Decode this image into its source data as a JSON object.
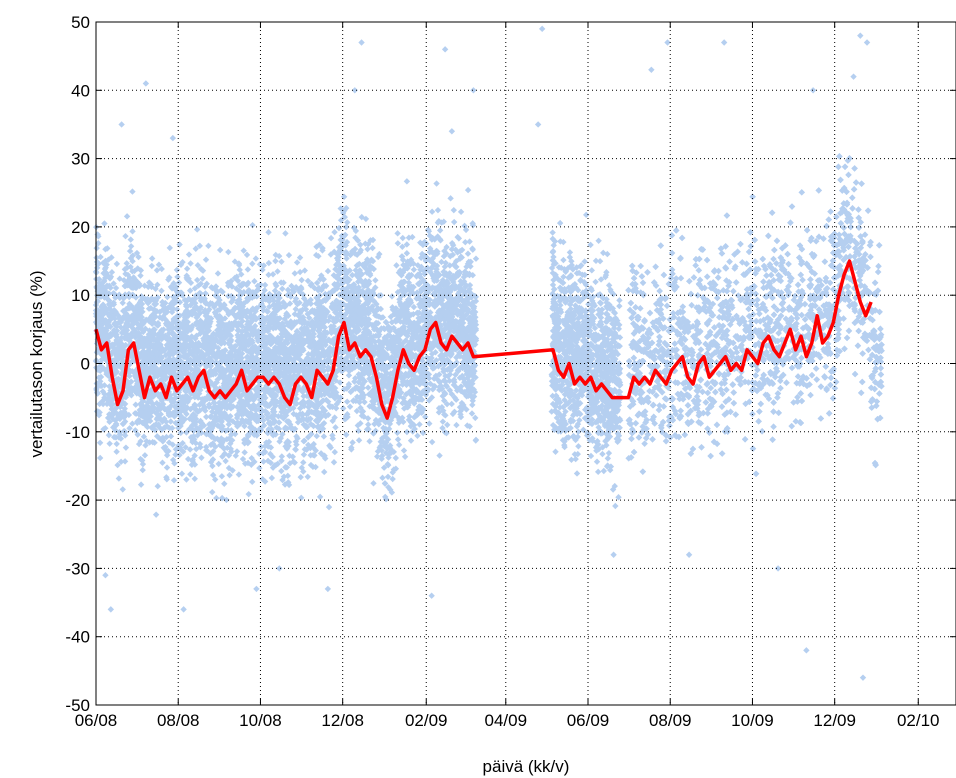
{
  "chart_data": {
    "type": "scatter",
    "title": "",
    "xlabel": "päivä (kk/v)",
    "ylabel": "vertailutason korjaus (%)",
    "xlim": [
      "2008-06-01",
      "2010-03-01"
    ],
    "ylim": [
      -50,
      50
    ],
    "grid": true,
    "x_tick_labels": [
      "06/08",
      "08/08",
      "10/08",
      "12/08",
      "02/09",
      "04/09",
      "06/09",
      "08/09",
      "10/09",
      "12/09",
      "02/10"
    ],
    "y_tick_labels": [
      "-50",
      "-40",
      "-30",
      "-20",
      "-10",
      "0",
      "10",
      "20",
      "30",
      "40",
      "50"
    ],
    "colors": {
      "scatter": "#b5cff0",
      "line": "#ff0000",
      "grid": "#000000"
    },
    "series": [
      {
        "type": "scatter",
        "marker": "diamond",
        "data_segments": [
          {
            "x_start": "2008-06-01",
            "x_end": "2009-03-10",
            "typical_min": -20,
            "typical_max": 25
          },
          {
            "x_start": "2009-05-05",
            "x_end": "2009-06-25",
            "typical_min": -20,
            "typical_max": 20
          },
          {
            "x_start": "2009-07-01",
            "x_end": "2010-01-05",
            "typical_min": -20,
            "typical_max": 25
          }
        ],
        "outliers": [
          {
            "x": "2008-06-20",
            "y": 35
          },
          {
            "x": "2008-07-08",
            "y": 41
          },
          {
            "x": "2008-07-28",
            "y": 33
          },
          {
            "x": "2008-06-12",
            "y": -36
          },
          {
            "x": "2008-08-05",
            "y": -36
          },
          {
            "x": "2008-12-15",
            "y": 47
          },
          {
            "x": "2008-12-10",
            "y": 40
          },
          {
            "x": "2009-02-15",
            "y": 46
          },
          {
            "x": "2009-02-20",
            "y": 34
          },
          {
            "x": "2009-03-08",
            "y": 40
          },
          {
            "x": "2009-04-28",
            "y": 49
          },
          {
            "x": "2009-04-25",
            "y": 35
          },
          {
            "x": "2009-07-18",
            "y": 43
          },
          {
            "x": "2009-07-30",
            "y": 47
          },
          {
            "x": "2009-09-10",
            "y": 47
          },
          {
            "x": "2009-11-15",
            "y": 40
          },
          {
            "x": "2009-12-20",
            "y": 48
          },
          {
            "x": "2009-12-25",
            "y": 47
          },
          {
            "x": "2009-12-15",
            "y": 42
          },
          {
            "x": "2009-10-20",
            "y": -30
          },
          {
            "x": "2009-11-10",
            "y": -42
          },
          {
            "x": "2009-12-22",
            "y": -46
          },
          {
            "x": "2009-02-05",
            "y": -34
          },
          {
            "x": "2008-10-15",
            "y": -30
          },
          {
            "x": "2008-11-20",
            "y": -33
          },
          {
            "x": "2008-09-28",
            "y": -33
          },
          {
            "x": "2009-06-20",
            "y": -28
          },
          {
            "x": "2009-08-15",
            "y": -28
          },
          {
            "x": "2008-06-08",
            "y": -31
          }
        ]
      },
      {
        "type": "line",
        "points": [
          {
            "x": "2008-06-01",
            "y": 5
          },
          {
            "x": "2008-06-05",
            "y": 2
          },
          {
            "x": "2008-06-09",
            "y": 3
          },
          {
            "x": "2008-06-13",
            "y": -2
          },
          {
            "x": "2008-06-17",
            "y": -6
          },
          {
            "x": "2008-06-21",
            "y": -4
          },
          {
            "x": "2008-06-25",
            "y": 2
          },
          {
            "x": "2008-06-29",
            "y": 3
          },
          {
            "x": "2008-07-03",
            "y": -1
          },
          {
            "x": "2008-07-07",
            "y": -5
          },
          {
            "x": "2008-07-11",
            "y": -2
          },
          {
            "x": "2008-07-15",
            "y": -4
          },
          {
            "x": "2008-07-19",
            "y": -3
          },
          {
            "x": "2008-07-23",
            "y": -5
          },
          {
            "x": "2008-07-27",
            "y": -2
          },
          {
            "x": "2008-07-31",
            "y": -4
          },
          {
            "x": "2008-08-04",
            "y": -3
          },
          {
            "x": "2008-08-08",
            "y": -2
          },
          {
            "x": "2008-08-12",
            "y": -4
          },
          {
            "x": "2008-08-16",
            "y": -2
          },
          {
            "x": "2008-08-20",
            "y": -1
          },
          {
            "x": "2008-08-24",
            "y": -4
          },
          {
            "x": "2008-08-28",
            "y": -5
          },
          {
            "x": "2008-09-01",
            "y": -4
          },
          {
            "x": "2008-09-05",
            "y": -5
          },
          {
            "x": "2008-09-09",
            "y": -4
          },
          {
            "x": "2008-09-13",
            "y": -3
          },
          {
            "x": "2008-09-17",
            "y": -1
          },
          {
            "x": "2008-09-21",
            "y": -4
          },
          {
            "x": "2008-09-25",
            "y": -3
          },
          {
            "x": "2008-09-29",
            "y": -2
          },
          {
            "x": "2008-10-03",
            "y": -2
          },
          {
            "x": "2008-10-07",
            "y": -3
          },
          {
            "x": "2008-10-11",
            "y": -2
          },
          {
            "x": "2008-10-15",
            "y": -3
          },
          {
            "x": "2008-10-19",
            "y": -5
          },
          {
            "x": "2008-10-23",
            "y": -6
          },
          {
            "x": "2008-10-27",
            "y": -3
          },
          {
            "x": "2008-10-31",
            "y": -2
          },
          {
            "x": "2008-11-04",
            "y": -3
          },
          {
            "x": "2008-11-08",
            "y": -5
          },
          {
            "x": "2008-11-12",
            "y": -1
          },
          {
            "x": "2008-11-16",
            "y": -2
          },
          {
            "x": "2008-11-20",
            "y": -3
          },
          {
            "x": "2008-11-24",
            "y": -1
          },
          {
            "x": "2008-11-28",
            "y": 4
          },
          {
            "x": "2008-12-02",
            "y": 6
          },
          {
            "x": "2008-12-06",
            "y": 2
          },
          {
            "x": "2008-12-10",
            "y": 3
          },
          {
            "x": "2008-12-14",
            "y": 1
          },
          {
            "x": "2008-12-18",
            "y": 2
          },
          {
            "x": "2008-12-22",
            "y": 1
          },
          {
            "x": "2008-12-26",
            "y": -2
          },
          {
            "x": "2008-12-30",
            "y": -6
          },
          {
            "x": "2009-01-03",
            "y": -8
          },
          {
            "x": "2009-01-07",
            "y": -5
          },
          {
            "x": "2009-01-11",
            "y": -1
          },
          {
            "x": "2009-01-15",
            "y": 2
          },
          {
            "x": "2009-01-19",
            "y": 0
          },
          {
            "x": "2009-01-23",
            "y": -1
          },
          {
            "x": "2009-01-27",
            "y": 1
          },
          {
            "x": "2009-01-31",
            "y": 2
          },
          {
            "x": "2009-02-04",
            "y": 5
          },
          {
            "x": "2009-02-08",
            "y": 6
          },
          {
            "x": "2009-02-12",
            "y": 3
          },
          {
            "x": "2009-02-16",
            "y": 2
          },
          {
            "x": "2009-02-20",
            "y": 4
          },
          {
            "x": "2009-02-24",
            "y": 3
          },
          {
            "x": "2009-02-28",
            "y": 2
          },
          {
            "x": "2009-03-04",
            "y": 3
          },
          {
            "x": "2009-03-08",
            "y": 1
          },
          {
            "x": "2009-05-06",
            "y": 2
          },
          {
            "x": "2009-05-10",
            "y": -1
          },
          {
            "x": "2009-05-14",
            "y": -2
          },
          {
            "x": "2009-05-18",
            "y": 0
          },
          {
            "x": "2009-05-22",
            "y": -3
          },
          {
            "x": "2009-05-26",
            "y": -2
          },
          {
            "x": "2009-05-30",
            "y": -3
          },
          {
            "x": "2009-06-03",
            "y": -2
          },
          {
            "x": "2009-06-07",
            "y": -4
          },
          {
            "x": "2009-06-11",
            "y": -3
          },
          {
            "x": "2009-06-15",
            "y": -4
          },
          {
            "x": "2009-06-19",
            "y": -5
          },
          {
            "x": "2009-06-25",
            "y": -5
          },
          {
            "x": "2009-07-01",
            "y": -5
          },
          {
            "x": "2009-07-05",
            "y": -2
          },
          {
            "x": "2009-07-09",
            "y": -3
          },
          {
            "x": "2009-07-13",
            "y": -2
          },
          {
            "x": "2009-07-17",
            "y": -3
          },
          {
            "x": "2009-07-21",
            "y": -1
          },
          {
            "x": "2009-07-25",
            "y": -2
          },
          {
            "x": "2009-07-29",
            "y": -3
          },
          {
            "x": "2009-08-02",
            "y": -1
          },
          {
            "x": "2009-08-06",
            "y": 0
          },
          {
            "x": "2009-08-10",
            "y": 1
          },
          {
            "x": "2009-08-14",
            "y": -2
          },
          {
            "x": "2009-08-18",
            "y": -3
          },
          {
            "x": "2009-08-22",
            "y": 0
          },
          {
            "x": "2009-08-26",
            "y": 1
          },
          {
            "x": "2009-08-30",
            "y": -2
          },
          {
            "x": "2009-09-03",
            "y": -1
          },
          {
            "x": "2009-09-07",
            "y": 0
          },
          {
            "x": "2009-09-11",
            "y": 1
          },
          {
            "x": "2009-09-15",
            "y": -1
          },
          {
            "x": "2009-09-19",
            "y": 0
          },
          {
            "x": "2009-09-23",
            "y": -1
          },
          {
            "x": "2009-09-27",
            "y": 2
          },
          {
            "x": "2009-10-01",
            "y": 1
          },
          {
            "x": "2009-10-05",
            "y": 0
          },
          {
            "x": "2009-10-09",
            "y": 3
          },
          {
            "x": "2009-10-13",
            "y": 4
          },
          {
            "x": "2009-10-17",
            "y": 2
          },
          {
            "x": "2009-10-21",
            "y": 1
          },
          {
            "x": "2009-10-25",
            "y": 3
          },
          {
            "x": "2009-10-29",
            "y": 5
          },
          {
            "x": "2009-11-02",
            "y": 2
          },
          {
            "x": "2009-11-06",
            "y": 4
          },
          {
            "x": "2009-11-10",
            "y": 1
          },
          {
            "x": "2009-11-14",
            "y": 3
          },
          {
            "x": "2009-11-18",
            "y": 7
          },
          {
            "x": "2009-11-22",
            "y": 3
          },
          {
            "x": "2009-11-26",
            "y": 4
          },
          {
            "x": "2009-11-30",
            "y": 6
          },
          {
            "x": "2009-12-04",
            "y": 10
          },
          {
            "x": "2009-12-08",
            "y": 13
          },
          {
            "x": "2009-12-12",
            "y": 15
          },
          {
            "x": "2009-12-16",
            "y": 12
          },
          {
            "x": "2009-12-20",
            "y": 9
          },
          {
            "x": "2009-12-24",
            "y": 7
          },
          {
            "x": "2009-12-28",
            "y": 9
          }
        ]
      }
    ]
  }
}
